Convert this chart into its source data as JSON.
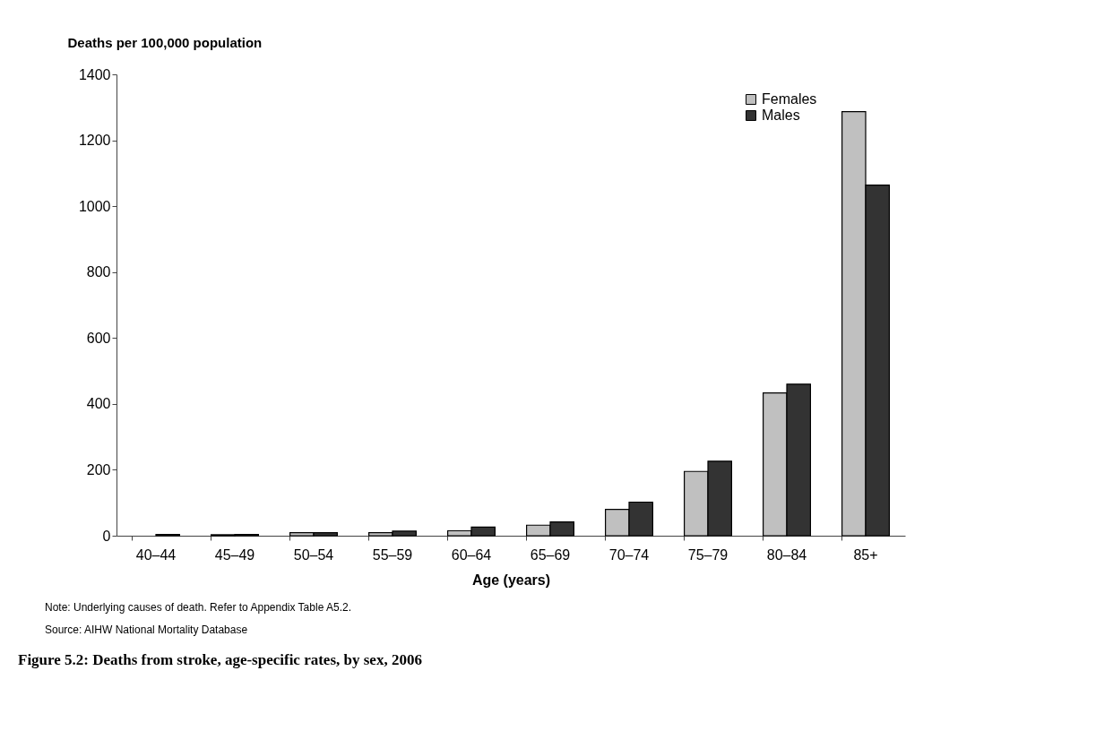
{
  "chart_data": {
    "type": "bar",
    "title": "Figure 5.2: Deaths from stroke, age-specific rates, by sex, 2006",
    "xlabel": "Age (years)",
    "ylabel": "Deaths per 100,000 population",
    "categories": [
      "40–44",
      "45–49",
      "50–54",
      "55–59",
      "60–64",
      "65–69",
      "70–74",
      "75–79",
      "80–84",
      "85+"
    ],
    "series": [
      {
        "name": "Females",
        "color": "#c0c0c0",
        "values": [
          null,
          3,
          9,
          9,
          15,
          32,
          80,
          195,
          433,
          1287
        ]
      },
      {
        "name": "Males",
        "color": "#333333",
        "values": [
          4,
          4,
          9,
          14,
          26,
          42,
          102,
          226,
          460,
          1064
        ]
      }
    ],
    "ylim": [
      0,
      1400
    ],
    "yticks": [
      0,
      200,
      400,
      600,
      800,
      1000,
      1200,
      1400
    ],
    "grid": false,
    "legend": "top right",
    "annotations": [
      "Note: Underlying causes of death. Refer to Appendix Table A5.2.",
      "Source: AIHW National Mortality Database"
    ]
  }
}
